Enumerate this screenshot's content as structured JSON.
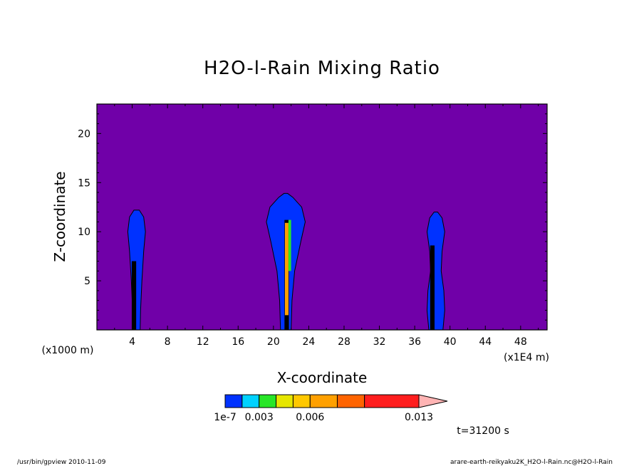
{
  "chart_data": {
    "type": "heatmap",
    "title": "H2O-l-Rain Mixing Ratio",
    "xlabel": "X-coordinate",
    "ylabel": "Z-coordinate",
    "x_unit": "(x1E4 m)",
    "y_unit": "(x1000 m)",
    "x_ticks": [
      "4",
      "8",
      "12",
      "16",
      "20",
      "24",
      "28",
      "32",
      "36",
      "40",
      "44",
      "48"
    ],
    "y_ticks": [
      "5",
      "10",
      "15",
      "20"
    ],
    "xlim": [
      0,
      51
    ],
    "ylim": [
      0,
      23
    ],
    "background_color": "#7000a8",
    "colorbar": {
      "colors": [
        "#0032ff",
        "#00d2ff",
        "#28e628",
        "#e6e600",
        "#ffc800",
        "#ffa000",
        "#ff6400",
        "#ff1e1e",
        "#ff8080",
        "#ffb4b4"
      ],
      "labels": [
        "1e-7",
        "0.003",
        "0.006",
        "0.013"
      ],
      "label_values": [
        1e-07,
        0.003,
        0.006,
        0.013
      ]
    },
    "cells": [
      {
        "name": "left",
        "center_x": 4.5,
        "top_z": 12.2,
        "profile": [
          [
            0,
            0.4
          ],
          [
            2,
            0.45
          ],
          [
            5,
            0.6
          ],
          [
            8,
            0.8
          ],
          [
            10,
            1.0
          ],
          [
            11.5,
            0.8
          ],
          [
            12.2,
            0.3
          ]
        ],
        "core": {
          "x": 4.2,
          "z0": 0,
          "z1": 7
        }
      },
      {
        "name": "middle",
        "center_x": 21.4,
        "top_z": 13.9,
        "profile": [
          [
            0,
            0.6
          ],
          [
            3,
            0.7
          ],
          [
            6,
            1.0
          ],
          [
            9,
            1.7
          ],
          [
            11,
            2.2
          ],
          [
            12.5,
            1.8
          ],
          [
            13.5,
            0.8
          ],
          [
            13.9,
            0.2
          ]
        ],
        "core": {
          "x": 21.5,
          "z0": 0,
          "z1": 11.2
        }
      },
      {
        "name": "right",
        "center_x": 38.4,
        "top_z": 12.0,
        "profile": [
          [
            0,
            0.8
          ],
          [
            2,
            1.0
          ],
          [
            4,
            0.9
          ],
          [
            6,
            0.6
          ],
          [
            8,
            0.7
          ],
          [
            10,
            1.0
          ],
          [
            11.4,
            0.7
          ],
          [
            12,
            0.2
          ]
        ],
        "core": {
          "x": 38.0,
          "z0": 0,
          "z1": 8.6
        }
      }
    ],
    "grid": false
  },
  "time_label": "t=31200 s",
  "footer_left": "/usr/bin/gpview   2010-11-09",
  "footer_right": "arare-earth-reikyaku2K_H2O-l-Rain.nc@H2O-l-Rain"
}
